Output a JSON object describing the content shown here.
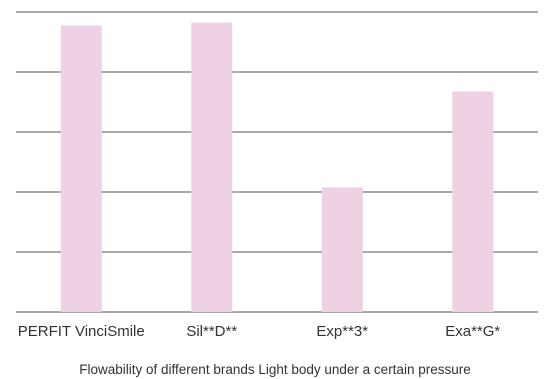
{
  "chart_data": {
    "type": "bar",
    "categories": [
      "PERFIT VinciSmile",
      "Sil**D**",
      "Exp**3*",
      "Exa**G*"
    ],
    "values": [
      95.5,
      96.5,
      41.5,
      73.5
    ],
    "title": "",
    "caption": "Flowability of different brands Light body under a certain pressure",
    "xlabel": "",
    "ylabel": "",
    "ylim": [
      0,
      100
    ],
    "grid": true,
    "y_tick_labels_shown": false,
    "legend": "none",
    "colors": {
      "bar": "#eed1e3",
      "grid": "#555555",
      "text": "#333333"
    }
  }
}
